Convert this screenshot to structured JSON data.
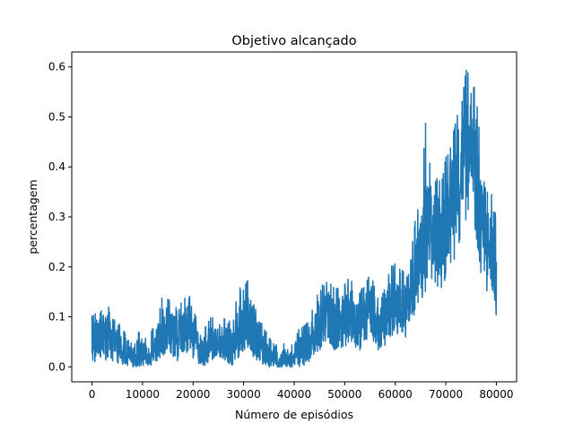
{
  "chart_data": {
    "type": "line",
    "title": "Objetivo alcançado",
    "xlabel": "Número de episódios",
    "ylabel": "percentagem",
    "xlim": [
      -4000,
      84000
    ],
    "ylim": [
      -0.03,
      0.63
    ],
    "xticks": [
      0,
      10000,
      20000,
      30000,
      40000,
      50000,
      60000,
      70000,
      80000
    ],
    "yticks": [
      0.0,
      0.1,
      0.2,
      0.3,
      0.4,
      0.5,
      0.6
    ],
    "xtick_labels": [
      "0",
      "10000",
      "20000",
      "30000",
      "40000",
      "50000",
      "60000",
      "70000",
      "80000"
    ],
    "ytick_labels": [
      "0.0",
      "0.1",
      "0.2",
      "0.3",
      "0.4",
      "0.5",
      "0.6"
    ],
    "grid": false,
    "series": [
      {
        "color": "#1f77b4",
        "x": [
          0,
          1000,
          2000,
          3000,
          4000,
          5000,
          6000,
          7000,
          8000,
          9000,
          10000,
          11000,
          12000,
          13000,
          14000,
          15000,
          16000,
          17000,
          18000,
          19000,
          20000,
          21000,
          22000,
          23000,
          24000,
          25000,
          26000,
          27000,
          28000,
          29000,
          30000,
          31000,
          32000,
          33000,
          34000,
          35000,
          36000,
          37000,
          38000,
          39000,
          40000,
          41000,
          42000,
          43000,
          44000,
          45000,
          46000,
          47000,
          48000,
          49000,
          50000,
          51000,
          52000,
          53000,
          54000,
          55000,
          56000,
          57000,
          58000,
          59000,
          60000,
          61000,
          62000,
          63000,
          64000,
          65000,
          66000,
          67000,
          68000,
          69000,
          70000,
          71000,
          72000,
          73000,
          74000,
          75000,
          76000,
          77000,
          78000,
          79000,
          80000
        ],
        "mean": [
          0.05,
          0.06,
          0.07,
          0.06,
          0.05,
          0.04,
          0.03,
          0.02,
          0.02,
          0.03,
          0.03,
          0.02,
          0.03,
          0.05,
          0.07,
          0.08,
          0.07,
          0.06,
          0.07,
          0.08,
          0.06,
          0.04,
          0.03,
          0.04,
          0.05,
          0.06,
          0.05,
          0.04,
          0.04,
          0.07,
          0.08,
          0.09,
          0.07,
          0.05,
          0.03,
          0.02,
          0.02,
          0.01,
          0.02,
          0.01,
          0.02,
          0.03,
          0.04,
          0.05,
          0.07,
          0.09,
          0.11,
          0.1,
          0.08,
          0.09,
          0.1,
          0.11,
          0.1,
          0.08,
          0.1,
          0.12,
          0.1,
          0.08,
          0.1,
          0.12,
          0.13,
          0.14,
          0.12,
          0.15,
          0.19,
          0.22,
          0.25,
          0.28,
          0.27,
          0.26,
          0.3,
          0.33,
          0.37,
          0.4,
          0.44,
          0.47,
          0.4,
          0.3,
          0.25,
          0.23,
          0.21
        ],
        "high": [
          0.11,
          0.11,
          0.12,
          0.13,
          0.1,
          0.09,
          0.08,
          0.06,
          0.05,
          0.08,
          0.07,
          0.05,
          0.08,
          0.1,
          0.15,
          0.14,
          0.12,
          0.12,
          0.14,
          0.15,
          0.12,
          0.09,
          0.08,
          0.09,
          0.11,
          0.11,
          0.1,
          0.09,
          0.1,
          0.16,
          0.16,
          0.18,
          0.19,
          0.1,
          0.08,
          0.06,
          0.05,
          0.04,
          0.05,
          0.04,
          0.05,
          0.08,
          0.09,
          0.1,
          0.13,
          0.16,
          0.17,
          0.18,
          0.16,
          0.16,
          0.17,
          0.18,
          0.17,
          0.15,
          0.17,
          0.19,
          0.16,
          0.13,
          0.17,
          0.2,
          0.21,
          0.2,
          0.19,
          0.22,
          0.3,
          0.34,
          0.49,
          0.4,
          0.38,
          0.37,
          0.42,
          0.45,
          0.5,
          0.52,
          0.6,
          0.58,
          0.55,
          0.42,
          0.35,
          0.35,
          0.37
        ],
        "low": [
          0.0,
          0.01,
          0.02,
          0.01,
          0.01,
          0.0,
          0.0,
          0.0,
          0.0,
          0.0,
          0.0,
          0.0,
          0.0,
          0.01,
          0.02,
          0.03,
          0.02,
          0.01,
          0.02,
          0.03,
          0.01,
          0.0,
          0.0,
          0.0,
          0.01,
          0.02,
          0.01,
          0.0,
          0.0,
          0.02,
          0.03,
          0.04,
          0.02,
          0.01,
          0.0,
          0.0,
          0.0,
          0.0,
          0.0,
          0.0,
          0.0,
          0.0,
          0.0,
          0.01,
          0.02,
          0.03,
          0.05,
          0.04,
          0.03,
          0.03,
          0.04,
          0.05,
          0.04,
          0.03,
          0.05,
          0.06,
          0.04,
          0.03,
          0.04,
          0.06,
          0.06,
          0.07,
          0.05,
          0.08,
          0.11,
          0.13,
          0.15,
          0.17,
          0.16,
          0.15,
          0.18,
          0.2,
          0.22,
          0.26,
          0.29,
          0.33,
          0.26,
          0.18,
          0.15,
          0.13,
          0.1
        ]
      }
    ]
  }
}
